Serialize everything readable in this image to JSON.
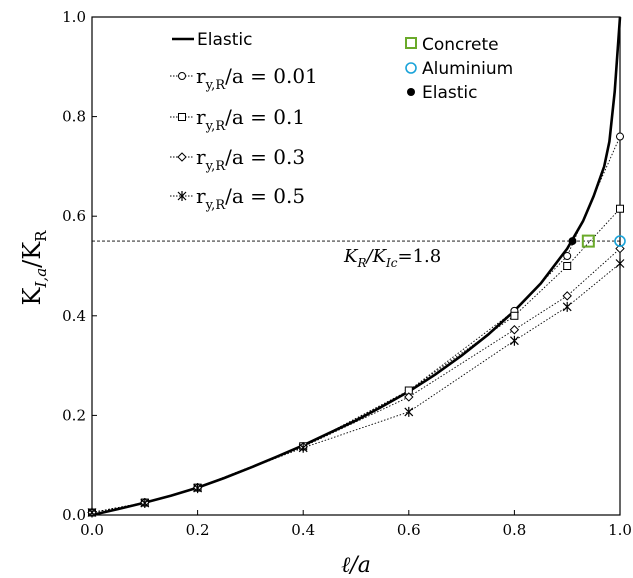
{
  "chart_data": {
    "type": "line",
    "xlim": [
      0,
      1
    ],
    "ylim": [
      0,
      1
    ],
    "x_ticks": [
      "0.0",
      "0.2",
      "0.4",
      "0.6",
      "0.8",
      "1.0"
    ],
    "y_ticks": [
      "0.0",
      "0.2",
      "0.4",
      "0.6",
      "0.8",
      "1.0"
    ],
    "xlabel": "ℓ/a",
    "ylabel": {
      "main": "K",
      "sub1": "I,a",
      "slash": "/K",
      "sub2": "R"
    },
    "grid": false,
    "legend_position": "top-left",
    "elastic_curve": {
      "name": "Elastic",
      "x": [
        0,
        0.05,
        0.1,
        0.15,
        0.2,
        0.25,
        0.3,
        0.35,
        0.4,
        0.45,
        0.5,
        0.55,
        0.6,
        0.65,
        0.7,
        0.75,
        0.8,
        0.85,
        0.9,
        0.93,
        0.95,
        0.97,
        0.98,
        0.99,
        1.0
      ],
      "y": [
        0,
        0.012,
        0.025,
        0.039,
        0.055,
        0.074,
        0.095,
        0.117,
        0.14,
        0.165,
        0.19,
        0.218,
        0.248,
        0.282,
        0.32,
        0.362,
        0.41,
        0.465,
        0.535,
        0.59,
        0.64,
        0.7,
        0.75,
        0.85,
        1.0
      ]
    },
    "series": [
      {
        "name": "r_y,R/a = 0.01",
        "marker": "circle",
        "x": [
          0,
          0.1,
          0.2,
          0.4,
          0.6,
          0.8,
          0.9,
          1.0
        ],
        "y": [
          0.005,
          0.025,
          0.055,
          0.138,
          0.25,
          0.41,
          0.52,
          0.76
        ]
      },
      {
        "name": "r_y,R/a = 0.1",
        "marker": "square",
        "x": [
          0,
          0.1,
          0.2,
          0.4,
          0.6,
          0.8,
          0.9,
          1.0
        ],
        "y": [
          0.005,
          0.025,
          0.055,
          0.138,
          0.25,
          0.4,
          0.5,
          0.615
        ]
      },
      {
        "name": "r_y,R/a = 0.3",
        "marker": "diamond",
        "x": [
          0,
          0.1,
          0.2,
          0.4,
          0.6,
          0.8,
          0.9,
          1.0
        ],
        "y": [
          0.005,
          0.025,
          0.055,
          0.137,
          0.237,
          0.372,
          0.44,
          0.535
        ]
      },
      {
        "name": "r_y,R/a = 0.5",
        "marker": "star",
        "x": [
          0,
          0.1,
          0.2,
          0.4,
          0.6,
          0.8,
          0.9,
          1.0
        ],
        "y": [
          0.005,
          0.024,
          0.054,
          0.135,
          0.207,
          0.35,
          0.418,
          0.505
        ]
      }
    ],
    "points": [
      {
        "name": "Concrete",
        "marker": "square-open",
        "color": "#6aaa2a",
        "x": 0.94,
        "y": 0.55
      },
      {
        "name": "Aluminium",
        "marker": "circle-open",
        "color": "#1aa3d9",
        "x": 1.0,
        "y": 0.55
      },
      {
        "name": "Elastic",
        "marker": "circle-filled",
        "color": "#000000",
        "x": 0.91,
        "y": 0.55
      }
    ],
    "hline": {
      "y": 0.55,
      "label": {
        "k1": "K",
        "s1": "R",
        "mid": "/K",
        "s2": "Ic",
        "tail": "=1.8"
      }
    }
  },
  "legend_left": {
    "elastic": "Elastic",
    "items": [
      {
        "r": "r",
        "sub": "y,R",
        "rest": "/a = 0.01"
      },
      {
        "r": "r",
        "sub": "y,R",
        "rest": "/a = 0.1"
      },
      {
        "r": "r",
        "sub": "y,R",
        "rest": "/a = 0.3"
      },
      {
        "r": "r",
        "sub": "y,R",
        "rest": "/a = 0.5"
      }
    ]
  },
  "legend_right": [
    "Concrete",
    "Aluminium",
    "Elastic"
  ]
}
